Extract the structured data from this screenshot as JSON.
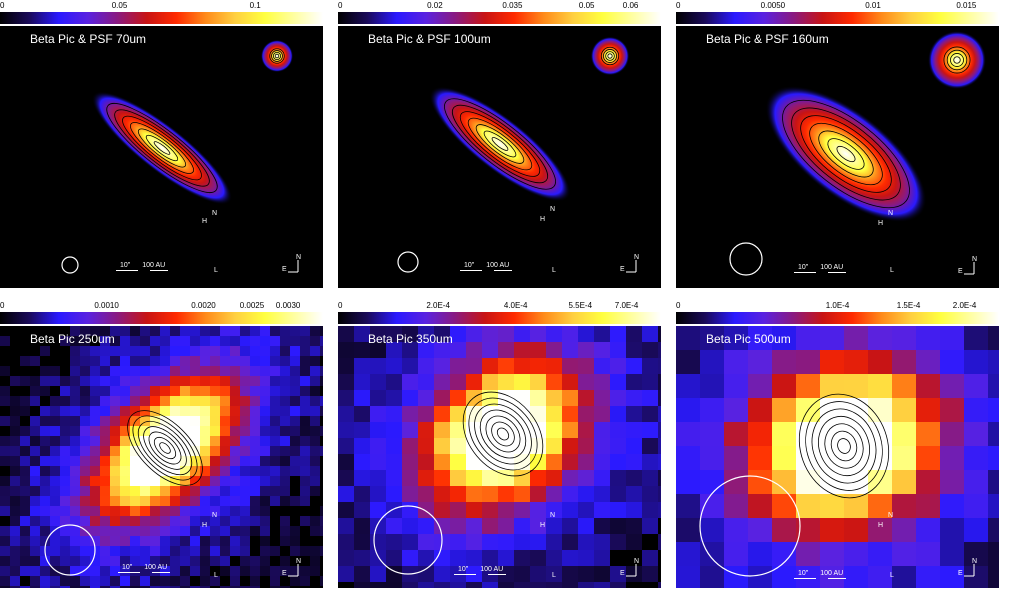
{
  "colormap": [
    "#000000",
    "#1a0a5a",
    "#2a1aff",
    "#5a22e0",
    "#8a1a80",
    "#c81414",
    "#ff2a00",
    "#ff8a1a",
    "#ffcf40",
    "#ffff40",
    "#ffffa0",
    "#ffffff"
  ],
  "panels": [
    {
      "id": "p70",
      "title": "Beta Pic & PSF 70um",
      "cbar": [
        {
          "text": "0",
          "pos": 0
        },
        {
          "text": "0.05",
          "pos": 0.37
        },
        {
          "text": "0.1",
          "pos": 0.79
        }
      ],
      "scale": {
        "arcsec": "10\"",
        "au": "100 AU"
      },
      "labels": {
        "n": "N",
        "h": "H",
        "l": "L",
        "compass_e": "E",
        "compass_n": "N"
      },
      "style": "smooth",
      "source": {
        "a": 0.27,
        "b": 0.07,
        "angle": -52,
        "peak": 1.0
      },
      "psf": {
        "peak": 1.0,
        "size": 0.05
      },
      "beam": "small",
      "contours": true
    },
    {
      "id": "p100",
      "title": "Beta Pic & PSF 100um",
      "cbar": [
        {
          "text": "0",
          "pos": 0
        },
        {
          "text": "0.02",
          "pos": 0.3
        },
        {
          "text": "0.035",
          "pos": 0.54
        },
        {
          "text": "0.05",
          "pos": 0.77
        },
        {
          "text": "0.06",
          "pos": 0.93
        }
      ],
      "scale": {
        "arcsec": "10\"",
        "au": "100 AU"
      },
      "labels": {
        "n": "N",
        "h": "H",
        "l": "L",
        "compass_e": "E",
        "compass_n": "N"
      },
      "style": "smooth",
      "source": {
        "a": 0.27,
        "b": 0.08,
        "angle": -52,
        "peak": 1.0
      },
      "psf": {
        "peak": 1.0,
        "size": 0.06
      },
      "beam": "small",
      "contours": true
    },
    {
      "id": "p160",
      "title": "Beta Pic & PSF 160um",
      "cbar": [
        {
          "text": "0",
          "pos": 0
        },
        {
          "text": "0.0050",
          "pos": 0.3
        },
        {
          "text": "0.01",
          "pos": 0.61
        },
        {
          "text": "0.015",
          "pos": 0.93
        }
      ],
      "scale": {
        "arcsec": "10\"",
        "au": "100 AU"
      },
      "labels": {
        "n": "N",
        "h": "H",
        "l": "L",
        "compass_e": "E",
        "compass_n": "N"
      },
      "style": "smooth",
      "source": {
        "a": 0.3,
        "b": 0.13,
        "angle": -52,
        "peak": 1.0
      },
      "psf": {
        "peak": 0.9,
        "size": 0.09
      },
      "beam": "medium",
      "contours": true
    },
    {
      "id": "p250",
      "title": "Beta Pic 250um",
      "cbar": [
        {
          "text": "0",
          "pos": 0
        },
        {
          "text": "0.0010",
          "pos": 0.33
        },
        {
          "text": "0.0020",
          "pos": 0.63
        },
        {
          "text": "0.0025",
          "pos": 0.78
        },
        {
          "text": "0.0030",
          "pos": 0.93
        }
      ],
      "scale": {
        "arcsec": "10\"",
        "au": "100 AU"
      },
      "labels": {
        "n": "N",
        "h": "H",
        "l": "L",
        "compass_e": "E",
        "compass_n": "N"
      },
      "style": "pixel",
      "pix": 10,
      "source": {
        "a": 0.3,
        "b": 0.16,
        "angle": -45,
        "peak": 1.0
      },
      "beam": "large",
      "contours": true
    },
    {
      "id": "p350",
      "title": "Beta Pic 350um",
      "cbar": [
        {
          "text": "0",
          "pos": 0
        },
        {
          "text": "2.0E-4",
          "pos": 0.31
        },
        {
          "text": "4.0E-4",
          "pos": 0.55
        },
        {
          "text": "5.5E-4",
          "pos": 0.75
        },
        {
          "text": "7.0E-4",
          "pos": 0.93
        }
      ],
      "scale": {
        "arcsec": "10\"",
        "au": "100 AU"
      },
      "labels": {
        "n": "N",
        "h": "H",
        "l": "L",
        "compass_e": "E",
        "compass_n": "N"
      },
      "style": "pixel",
      "pix": 16,
      "source": {
        "a": 0.3,
        "b": 0.22,
        "angle": -40,
        "peak": 1.0
      },
      "beam": "large",
      "contours": true
    },
    {
      "id": "p500",
      "title": "Beta Pic 500um",
      "cbar": [
        {
          "text": "0",
          "pos": 0
        },
        {
          "text": "1.0E-4",
          "pos": 0.5
        },
        {
          "text": "1.5E-4",
          "pos": 0.72
        },
        {
          "text": "2.0E-4",
          "pos": 0.93
        }
      ],
      "scale": {
        "arcsec": "10\"",
        "au": "100 AU"
      },
      "labels": {
        "n": "N",
        "h": "H",
        "l": "L",
        "compass_e": "E",
        "compass_n": "N"
      },
      "style": "pixel",
      "pix": 24,
      "source": {
        "a": 0.34,
        "b": 0.28,
        "angle": -20,
        "peak": 1.0
      },
      "beam": "xlarge",
      "contours": true
    }
  ]
}
